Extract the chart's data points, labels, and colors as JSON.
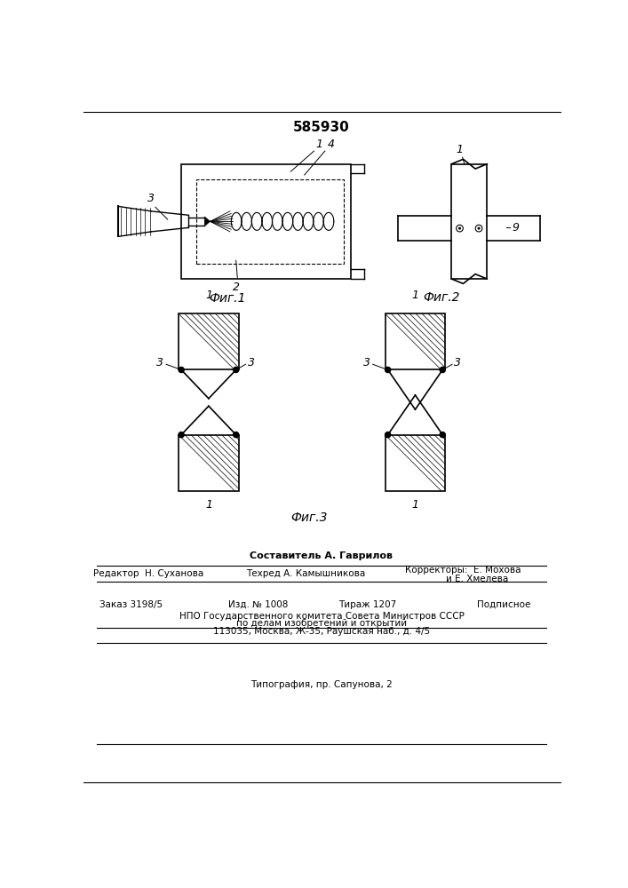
{
  "title": "585930",
  "fig1_label": "Фиг.1",
  "fig2_label": "Фиг.2",
  "fig3_label": "Фиг.3",
  "footer_line1": "Составитель А. Гаврилов",
  "footer_editor": "Редактор  Н. Суханова",
  "footer_tech": "Техред А. Камышникова",
  "footer_corr": "Корректоры:  Е. Мохова",
  "footer_corr2": "и Е. Хмелева",
  "footer_order": "Заказ 3198/5",
  "footer_izd": "Изд. № 1008",
  "footer_tirazh": "Тираж 1207",
  "footer_podp": "Подписное",
  "footer_npo": "НПО Государственного комитета Совета Министров СССР",
  "footer_po": "по делам изобретений и открытий",
  "footer_addr": "113035, Москва, Ж-35, Раушская наб., д. 4/5",
  "footer_typ": "Типография, пр. Сапунова, 2",
  "bg_color": "#ffffff",
  "line_color": "#000000"
}
